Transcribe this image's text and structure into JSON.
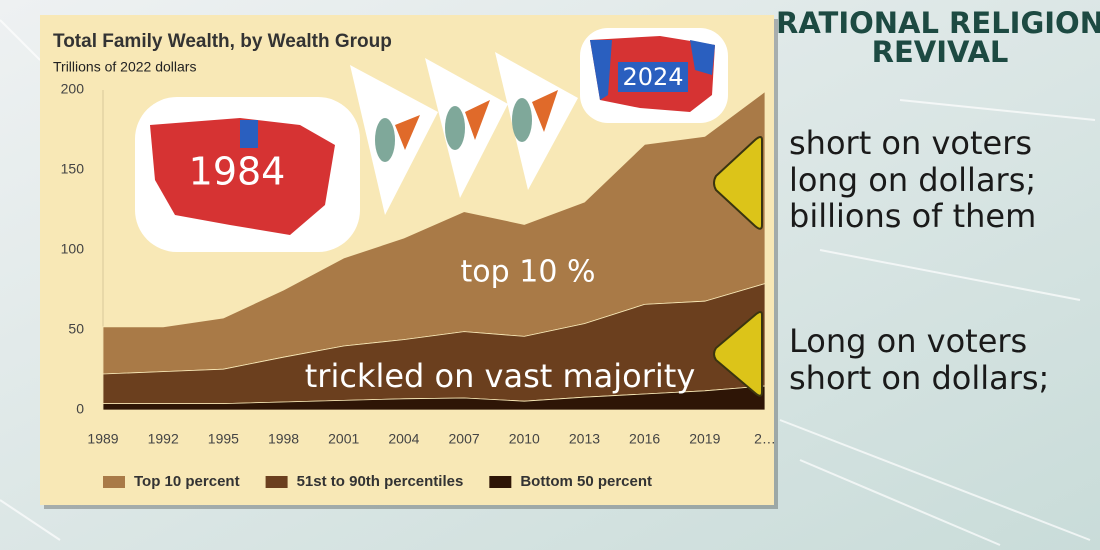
{
  "chart_data": {
    "type": "stacked-area",
    "title": "Total Family Wealth, by Wealth Group",
    "subtitle": "Trillions of 2022 dollars",
    "x": [
      1989,
      1992,
      1995,
      1998,
      2001,
      2004,
      2007,
      2010,
      2013,
      2016,
      2019,
      2022
    ],
    "xlim": [
      1989,
      2022
    ],
    "xticks": [
      1989,
      1992,
      1995,
      1998,
      2001,
      2004,
      2007,
      2010,
      2013,
      2016,
      2019,
      {
        "value": 2022,
        "label": "2…"
      }
    ],
    "ylim": [
      0,
      200
    ],
    "yticks": [
      0,
      50,
      100,
      150,
      200
    ],
    "grid": false,
    "legend": "bottom",
    "series": [
      {
        "name": "Top 10 percent",
        "color": "#a97a47",
        "values": [
          29.5,
          28,
          32,
          42,
          55,
          63.5,
          75,
          70,
          76,
          100,
          103,
          120
        ]
      },
      {
        "name": "51st to 90th percentiles",
        "color": "#6b3f1e",
        "values": [
          18.5,
          20,
          21.5,
          28,
          34,
          37,
          41.5,
          40.5,
          46,
          56,
          56,
          64
        ]
      },
      {
        "name": "Bottom 50 percent",
        "color": "#2e1506",
        "values": [
          4,
          4,
          4,
          5,
          6,
          7,
          7.5,
          5.5,
          8,
          10,
          12,
          15
        ]
      }
    ]
  },
  "slide": {
    "title": [
      "RATIONAL RELIGION",
      "REVIVAL"
    ],
    "map_labels": [
      "1984",
      "2024"
    ],
    "area_labels": [
      "top 10 %",
      "trickled on vast majority"
    ],
    "note_top": [
      "short on voters",
      "long on dollars;",
      "billions of them"
    ],
    "note_bottom": [
      "Long on voters",
      "short on dollars;"
    ]
  }
}
